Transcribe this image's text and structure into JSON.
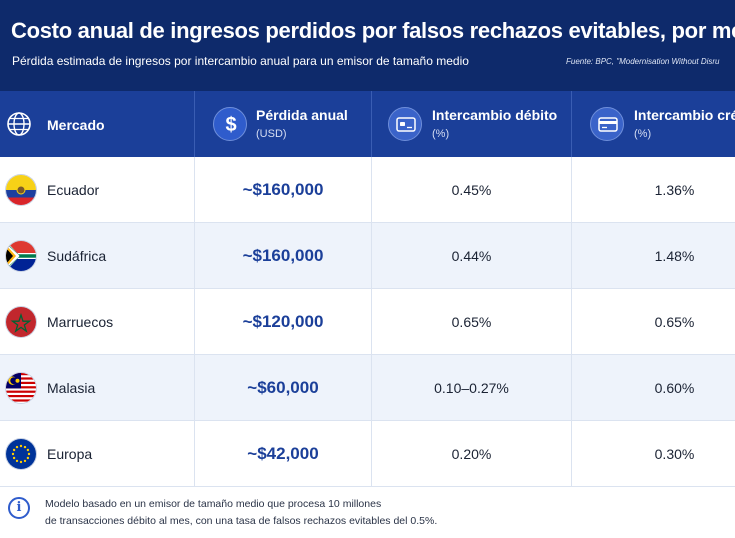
{
  "header": {
    "title": "Costo anual de ingresos perdidos por falsos rechazos evitables, por mercado",
    "subtitle": "Pérdida estimada de ingresos por intercambio anual para un emisor de tamaño medio",
    "source": "Fuente: BPC, \"Modernisation Without Disru"
  },
  "columns": {
    "market": {
      "label": "Mercado",
      "icon": "globe-icon"
    },
    "loss": {
      "label": "Pérdida anual",
      "unit": "(USD)",
      "icon": "dollar-icon"
    },
    "debit": {
      "label": "Intercambio débito",
      "unit": "(%)",
      "icon": "debit-card-icon"
    },
    "credit": {
      "label": "Intercambio cré",
      "unit": "(%)",
      "icon": "credit-card-icon"
    }
  },
  "rows": [
    {
      "market": "Ecuador",
      "flag": "ecuador-flag-icon",
      "loss": "~$160,000",
      "debit": "0.45%",
      "credit": "1.36%"
    },
    {
      "market": "Sudáfrica",
      "flag": "south-africa-flag-icon",
      "loss": "~$160,000",
      "debit": "0.44%",
      "credit": "1.48%"
    },
    {
      "market": "Marruecos",
      "flag": "morocco-flag-icon",
      "loss": "~$120,000",
      "debit": "0.65%",
      "credit": "0.65%"
    },
    {
      "market": "Malasia",
      "flag": "malaysia-flag-icon",
      "loss": "~$60,000",
      "debit": "0.10–0.27%",
      "credit": "0.60%"
    },
    {
      "market": "Europa",
      "flag": "eu-flag-icon",
      "loss": "~$42,000",
      "debit": "0.20%",
      "credit": "0.30%"
    }
  ],
  "footer": {
    "icon": "info-icon",
    "note_line1": "Modelo basado en un emisor de tamaño medio que procesa 10 millones",
    "note_line2": "de transacciones débito al mes, con una tasa de falsos rechazos evitables del 0.5%."
  },
  "colors": {
    "header_bg": "#0e2a6b",
    "table_head_bg": "#1b3f99",
    "accent": "#2f5ccc",
    "row_alt": "#eef3fb"
  }
}
